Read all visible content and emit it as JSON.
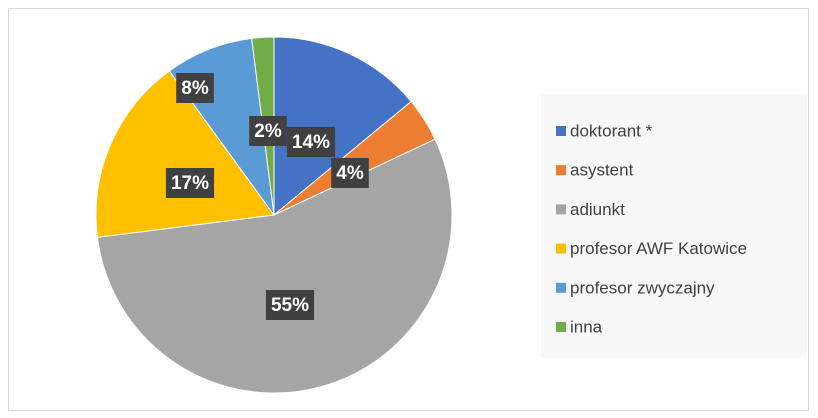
{
  "chart_data": {
    "type": "pie",
    "categories": [
      "doktorant *",
      "asystent",
      "adiunkt",
      "profesor AWF Katowice",
      "profesor zwyczajny",
      "inna"
    ],
    "values": [
      14,
      4,
      55,
      17,
      8,
      2
    ],
    "value_labels": [
      "14%",
      "4%",
      "55%",
      "17%",
      "8%",
      "2%"
    ],
    "colors": [
      "#4472c4",
      "#ed7d31",
      "#a5a5a5",
      "#ffc000",
      "#5b9bd5",
      "#70ad47"
    ],
    "legend": "right"
  }
}
